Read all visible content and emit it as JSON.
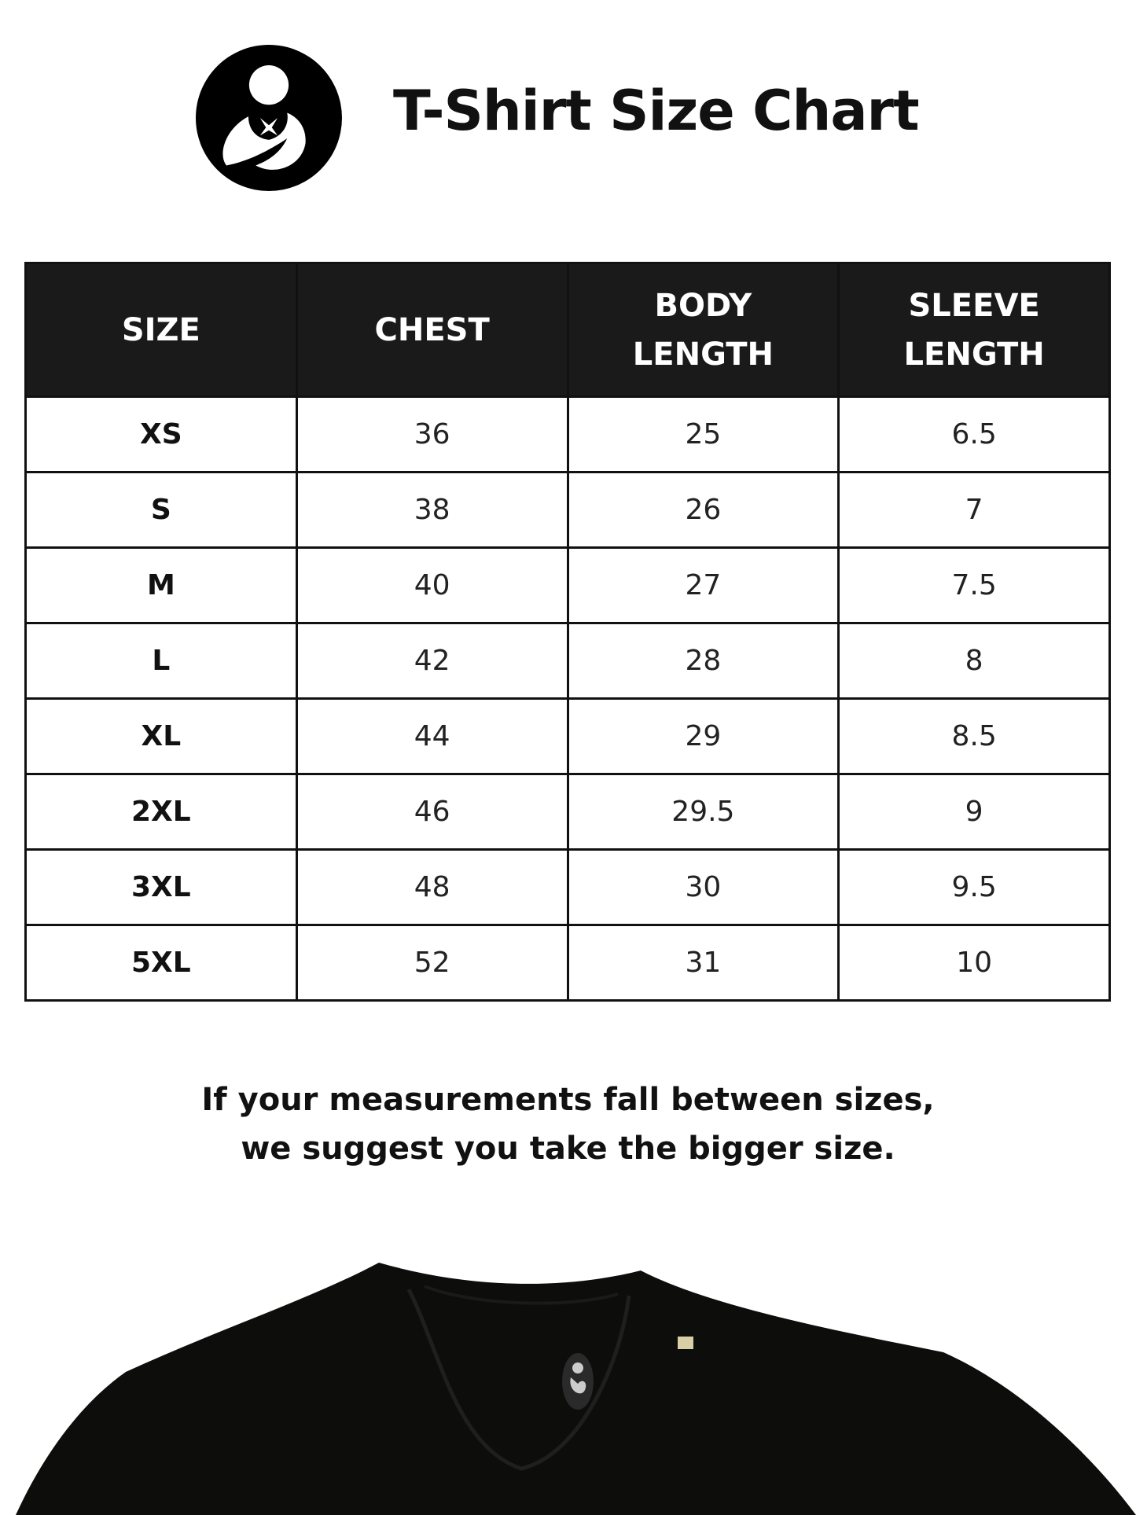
{
  "header": {
    "title": "T-Shirt Size Chart",
    "logo": "mother-child-logo"
  },
  "table": {
    "columns": [
      {
        "line1": "SIZE",
        "line2": ""
      },
      {
        "line1": "CHEST",
        "line2": ""
      },
      {
        "line1": "BODY",
        "line2": "LENGTH"
      },
      {
        "line1": "SLEEVE",
        "line2": "LENGTH"
      }
    ],
    "rows": [
      [
        "XS",
        "36",
        "25",
        "6.5"
      ],
      [
        "S",
        "38",
        "26",
        "7"
      ],
      [
        "M",
        "40",
        "27",
        "7.5"
      ],
      [
        "L",
        "42",
        "28",
        "8"
      ],
      [
        "XL",
        "44",
        "29",
        "8.5"
      ],
      [
        "2XL",
        "46",
        "29.5",
        "9"
      ],
      [
        "3XL",
        "48",
        "30",
        "9.5"
      ],
      [
        "5XL",
        "52",
        "31",
        "10"
      ]
    ]
  },
  "note": {
    "line1": "If your measurements fall between sizes,",
    "line2": "we suggest you take the bigger size."
  },
  "colors": {
    "header_bg": "#1a1a1a",
    "shirt": "#0d0d0b"
  }
}
